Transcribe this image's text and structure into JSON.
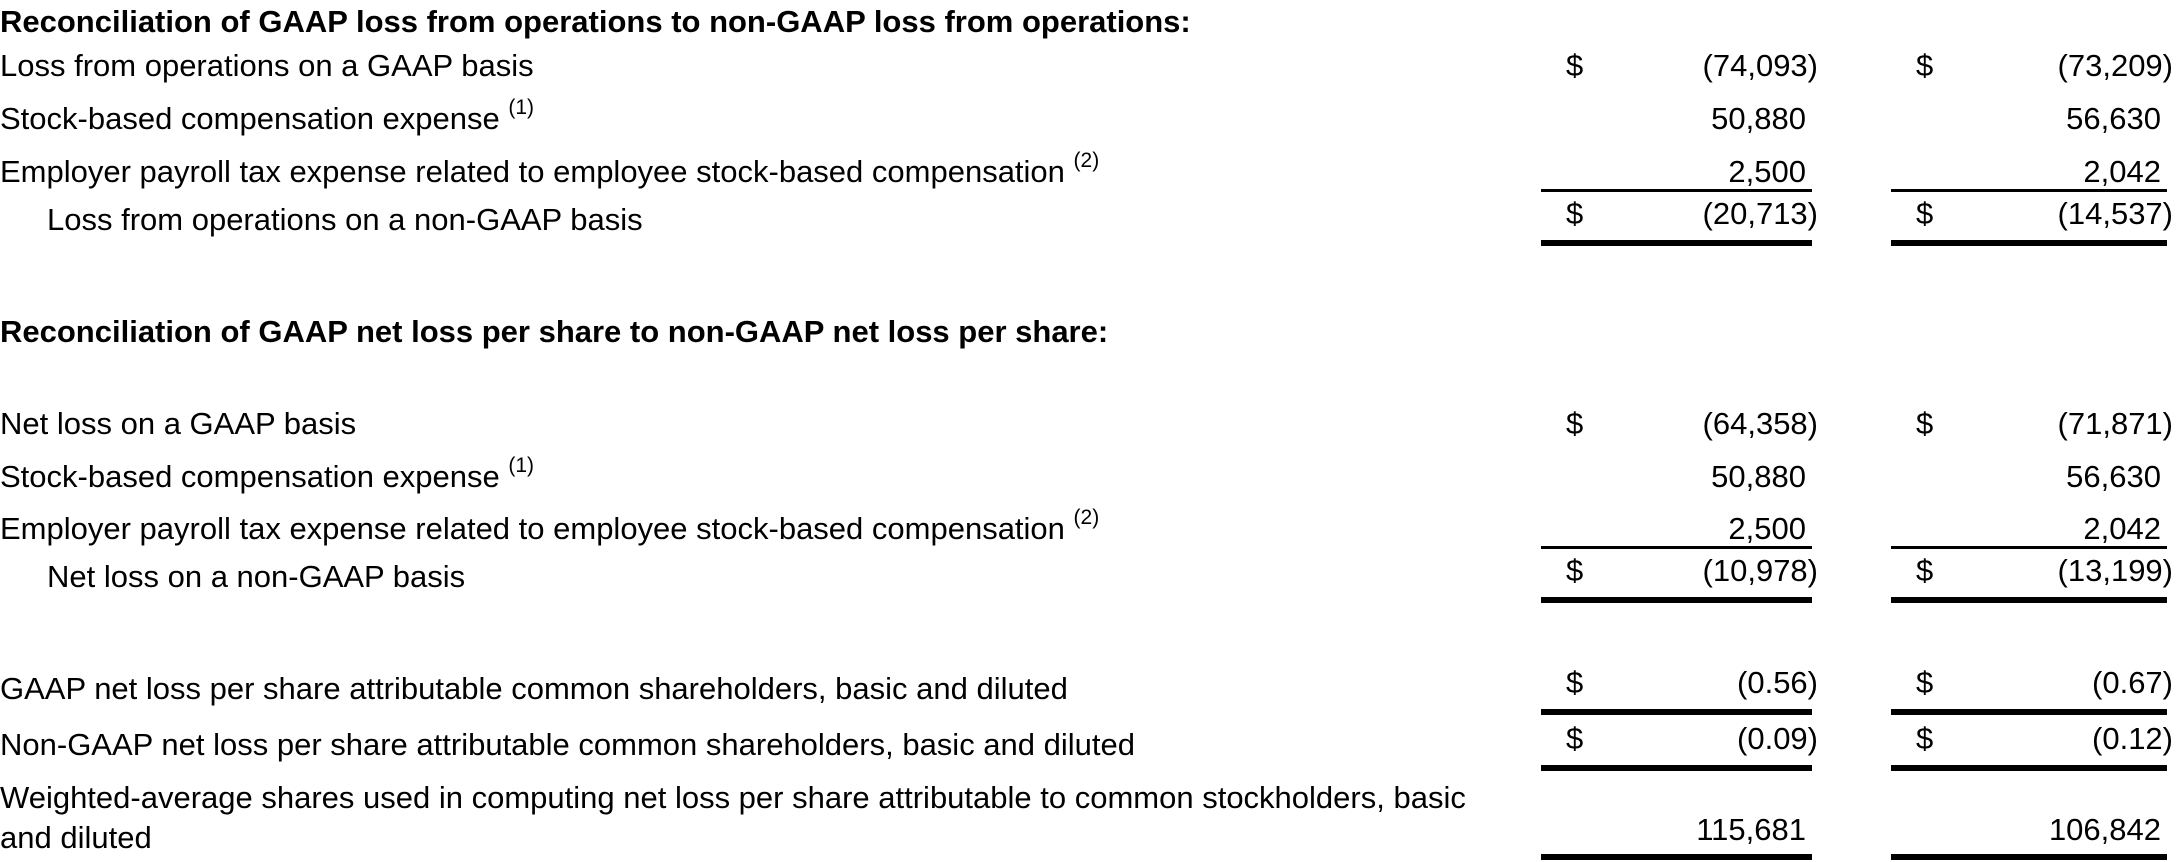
{
  "section1": {
    "heading": "Reconciliation of GAAP loss from operations to non-GAAP loss from operations:",
    "rows": [
      {
        "label": "Loss from operations on a GAAP basis",
        "sup": "",
        "dollar1": "$",
        "v1": "(74,093)",
        "dollar2": "$",
        "v2": "(73,209)"
      },
      {
        "label": "Stock-based compensation expense ",
        "sup": "(1)",
        "dollar1": "",
        "v1": "50,880",
        "dollar2": "",
        "v2": "56,630"
      },
      {
        "label": "Employer payroll tax expense related to employee stock-based compensation ",
        "sup": "(2)",
        "dollar1": "",
        "v1": "2,500",
        "dollar2": "",
        "v2": "2,042"
      },
      {
        "label": "Loss from operations on a non-GAAP basis",
        "sup": "",
        "dollar1": "$",
        "v1": "(20,713)",
        "dollar2": "$",
        "v2": "(14,537)"
      }
    ]
  },
  "section2": {
    "heading": "Reconciliation of GAAP net loss per share to non-GAAP net loss per share:",
    "rows": [
      {
        "label": "Net loss on a GAAP basis",
        "sup": "",
        "dollar1": "$",
        "v1": "(64,358)",
        "dollar2": "$",
        "v2": "(71,871)"
      },
      {
        "label": "Stock-based compensation expense ",
        "sup": "(1)",
        "dollar1": "",
        "v1": "50,880",
        "dollar2": "",
        "v2": "56,630"
      },
      {
        "label": "Employer payroll tax expense related to employee stock-based compensation ",
        "sup": "(2)",
        "dollar1": "",
        "v1": "2,500",
        "dollar2": "",
        "v2": "2,042"
      },
      {
        "label": "Net loss on a non-GAAP basis",
        "sup": "",
        "dollar1": "$",
        "v1": "(10,978)",
        "dollar2": "$",
        "v2": "(13,199)"
      }
    ]
  },
  "per_share": {
    "rows": [
      {
        "label": "GAAP net loss per share attributable common shareholders, basic and diluted",
        "dollar1": "$",
        "v1": "(0.56)",
        "dollar2": "$",
        "v2": "(0.67)"
      },
      {
        "label": "Non-GAAP net loss per share attributable common shareholders, basic and diluted",
        "dollar1": "$",
        "v1": "(0.09)",
        "dollar2": "$",
        "v2": "(0.12)"
      },
      {
        "label": "Weighted-average shares used in computing net loss per share attributable to common stockholders, basic and diluted",
        "dollar1": "",
        "v1": "115,681",
        "dollar2": "",
        "v2": "106,842"
      }
    ]
  }
}
